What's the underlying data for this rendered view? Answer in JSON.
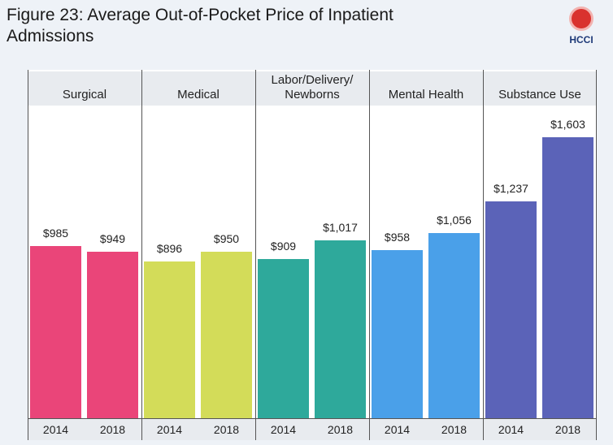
{
  "logo": "HCCI",
  "chart_data": {
    "type": "bar",
    "title": "Figure 23: Average Out-of-Pocket Price of Inpatient Admissions",
    "categories": [
      "Surgical",
      "Medical",
      "Labor/Delivery/ Newborns",
      "Mental Health",
      "Substance Use"
    ],
    "colors": [
      "#ea4579",
      "#d3dc59",
      "#2ea99b",
      "#4aa0e9",
      "#5b63b8"
    ],
    "series": [
      {
        "name": "2014",
        "values": [
          985,
          896,
          909,
          958,
          1237
        ],
        "value_labels": [
          "$985",
          "$896",
          "$909",
          "$958",
          "$1,237"
        ]
      },
      {
        "name": "2018",
        "values": [
          949,
          950,
          1017,
          1056,
          1603
        ],
        "value_labels": [
          "$949",
          "$950",
          "$1,017",
          "$1,056",
          "$1,603"
        ]
      }
    ],
    "ylim": [
      0,
      1785
    ]
  }
}
